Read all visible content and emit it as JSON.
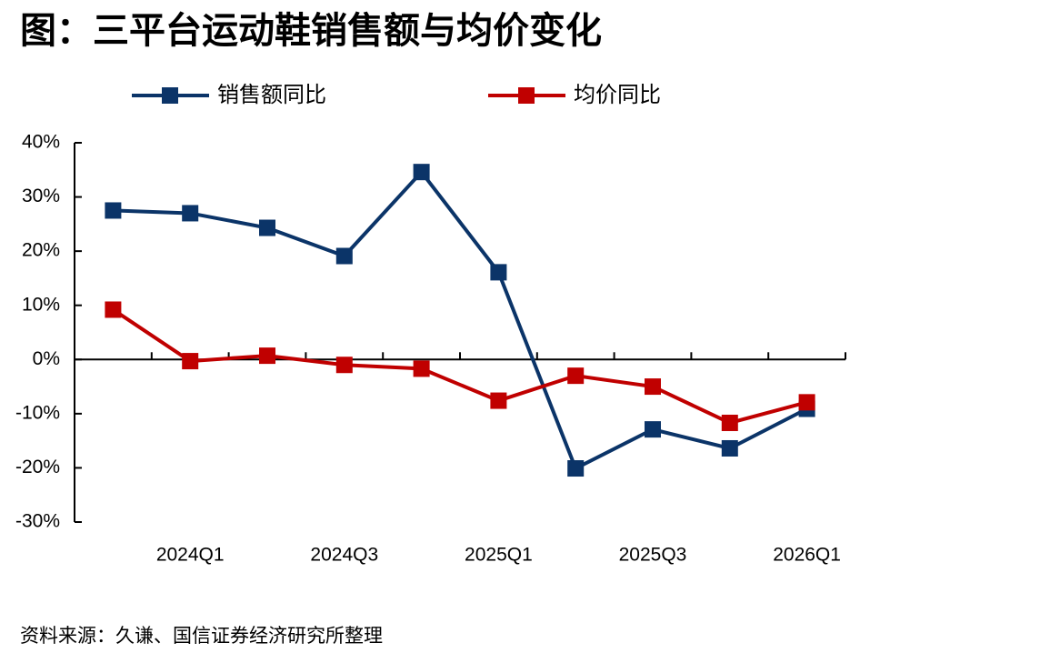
{
  "chart_data": {
    "type": "line",
    "title": "图：三平台运动鞋销售额与均价变化",
    "source": "资料来源：久谦、国信证券经济研究所整理",
    "categories": [
      null,
      "2024Q1",
      null,
      "2024Q3",
      null,
      "2025Q1",
      null,
      "2025Q3",
      null,
      "2026Q1"
    ],
    "series": [
      {
        "name": "销售额同比",
        "color": "#0b3468",
        "values": [
          27.5,
          27.0,
          24.3,
          19.1,
          34.6,
          16.1,
          -20.1,
          -12.9,
          -16.4,
          -9.1
        ]
      },
      {
        "name": "均价同比",
        "color": "#c00000",
        "values": [
          9.2,
          -0.3,
          0.7,
          -1.0,
          -1.7,
          -7.6,
          -3.0,
          -5.0,
          -11.7,
          -7.9
        ]
      }
    ],
    "ylim": [
      -30,
      40
    ],
    "yticks": [
      {
        "value": -30,
        "label": "-30%"
      },
      {
        "value": -20,
        "label": "-20%"
      },
      {
        "value": -10,
        "label": "-10%"
      },
      {
        "value": 0,
        "label": "0%"
      },
      {
        "value": 10,
        "label": "10%"
      },
      {
        "value": 20,
        "label": "20%"
      },
      {
        "value": 30,
        "label": "30%"
      },
      {
        "value": 40,
        "label": "40%"
      }
    ],
    "legend": "top"
  }
}
